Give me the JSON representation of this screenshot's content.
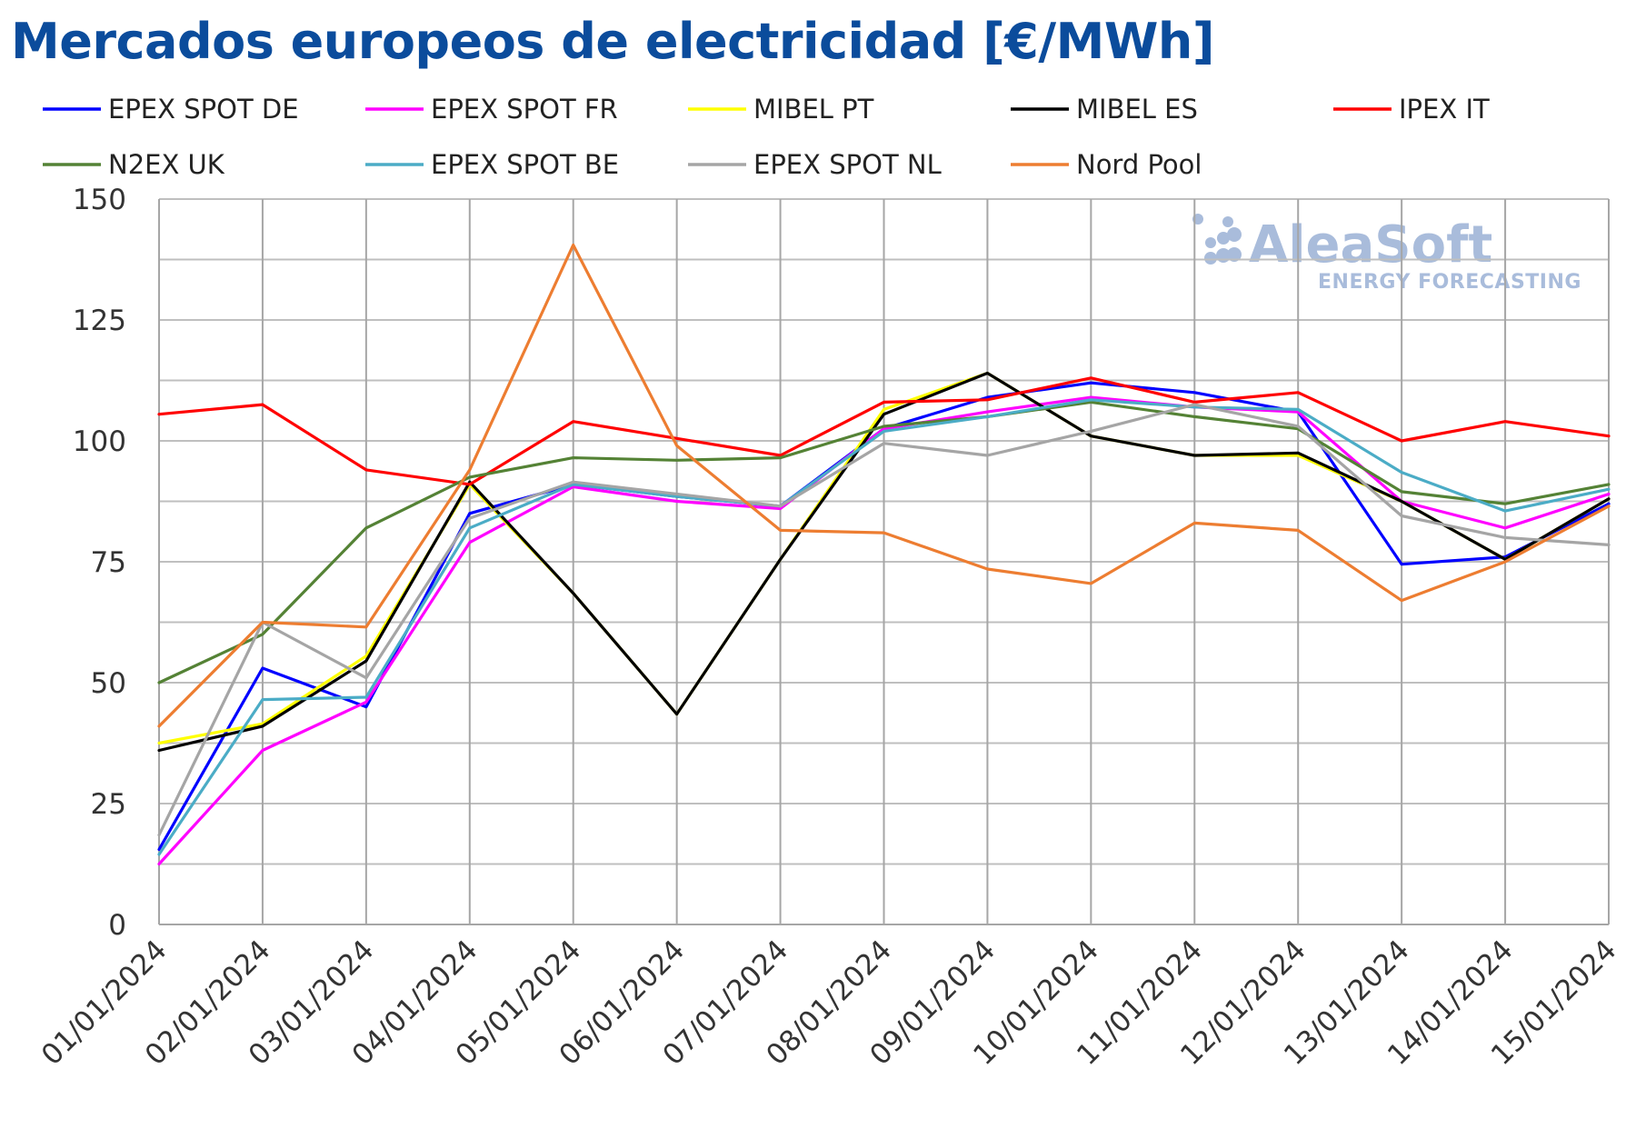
{
  "chart_data": {
    "type": "line",
    "title": "Mercados europeos de electricidad [€/MWh]",
    "xlabel": "",
    "ylabel": "",
    "ylim": [
      0,
      150
    ],
    "yticks": [
      0,
      25,
      50,
      75,
      100,
      125,
      150
    ],
    "grid": true,
    "legend_position": "top",
    "categories": [
      "01/01/2024",
      "02/01/2024",
      "03/01/2024",
      "04/01/2024",
      "05/01/2024",
      "06/01/2024",
      "07/01/2024",
      "08/01/2024",
      "09/01/2024",
      "10/01/2024",
      "11/01/2024",
      "12/01/2024",
      "13/01/2024",
      "14/01/2024",
      "15/01/2024"
    ],
    "series": [
      {
        "name": "EPEX SPOT DE",
        "color": "#0000ff",
        "values": [
          15.5,
          53,
          45,
          85,
          91,
          88.5,
          86.5,
          102.5,
          109,
          112,
          110,
          106,
          74.5,
          76,
          87
        ]
      },
      {
        "name": "EPEX SPOT FR",
        "color": "#ff00ff",
        "values": [
          12.5,
          36,
          46,
          79,
          90.5,
          87.5,
          86,
          102.5,
          106,
          109,
          107,
          106,
          87.5,
          82,
          89
        ]
      },
      {
        "name": "MIBEL PT",
        "color": "#ffff00",
        "values": [
          37.5,
          41.5,
          55.5,
          91,
          68.5,
          43.5,
          75.5,
          106.5,
          114,
          101,
          97,
          97,
          87.5,
          75.5,
          88
        ]
      },
      {
        "name": "MIBEL ES",
        "color": "#000000",
        "values": [
          36,
          41,
          54.5,
          91.5,
          68.5,
          43.5,
          75.5,
          105.5,
          114,
          101,
          97,
          97.5,
          87.5,
          75.5,
          88
        ]
      },
      {
        "name": "IPEX IT",
        "color": "#ff0000",
        "values": [
          105.5,
          107.5,
          94,
          91,
          104,
          100.5,
          97,
          108,
          108.5,
          113,
          108,
          110,
          100,
          104,
          101
        ]
      },
      {
        "name": "N2EX UK",
        "color": "#548235",
        "values": [
          50,
          60,
          82,
          92.5,
          96.5,
          96,
          96.5,
          103,
          105,
          108,
          105,
          102.5,
          89.5,
          87,
          91
        ]
      },
      {
        "name": "EPEX SPOT BE",
        "color": "#4bacc6",
        "values": [
          14.5,
          46.5,
          47,
          82,
          91,
          88.5,
          86.5,
          102,
          105,
          108.5,
          107,
          106.5,
          93.5,
          85.5,
          90
        ]
      },
      {
        "name": "EPEX SPOT NL",
        "color": "#a5a5a5",
        "values": [
          18.5,
          62.5,
          51,
          84,
          91.5,
          89,
          86.5,
          99.5,
          97,
          102,
          107.5,
          103,
          84.5,
          80,
          78.5
        ]
      },
      {
        "name": "Nord Pool",
        "color": "#ed7d31",
        "values": [
          41,
          62.5,
          61.5,
          94,
          140.5,
          99,
          81.5,
          81,
          73.5,
          70.5,
          83,
          81.5,
          67,
          75,
          86.5
        ]
      }
    ]
  },
  "logo": {
    "name": "AleaSoft",
    "tagline": "ENERGY FORECASTING"
  }
}
